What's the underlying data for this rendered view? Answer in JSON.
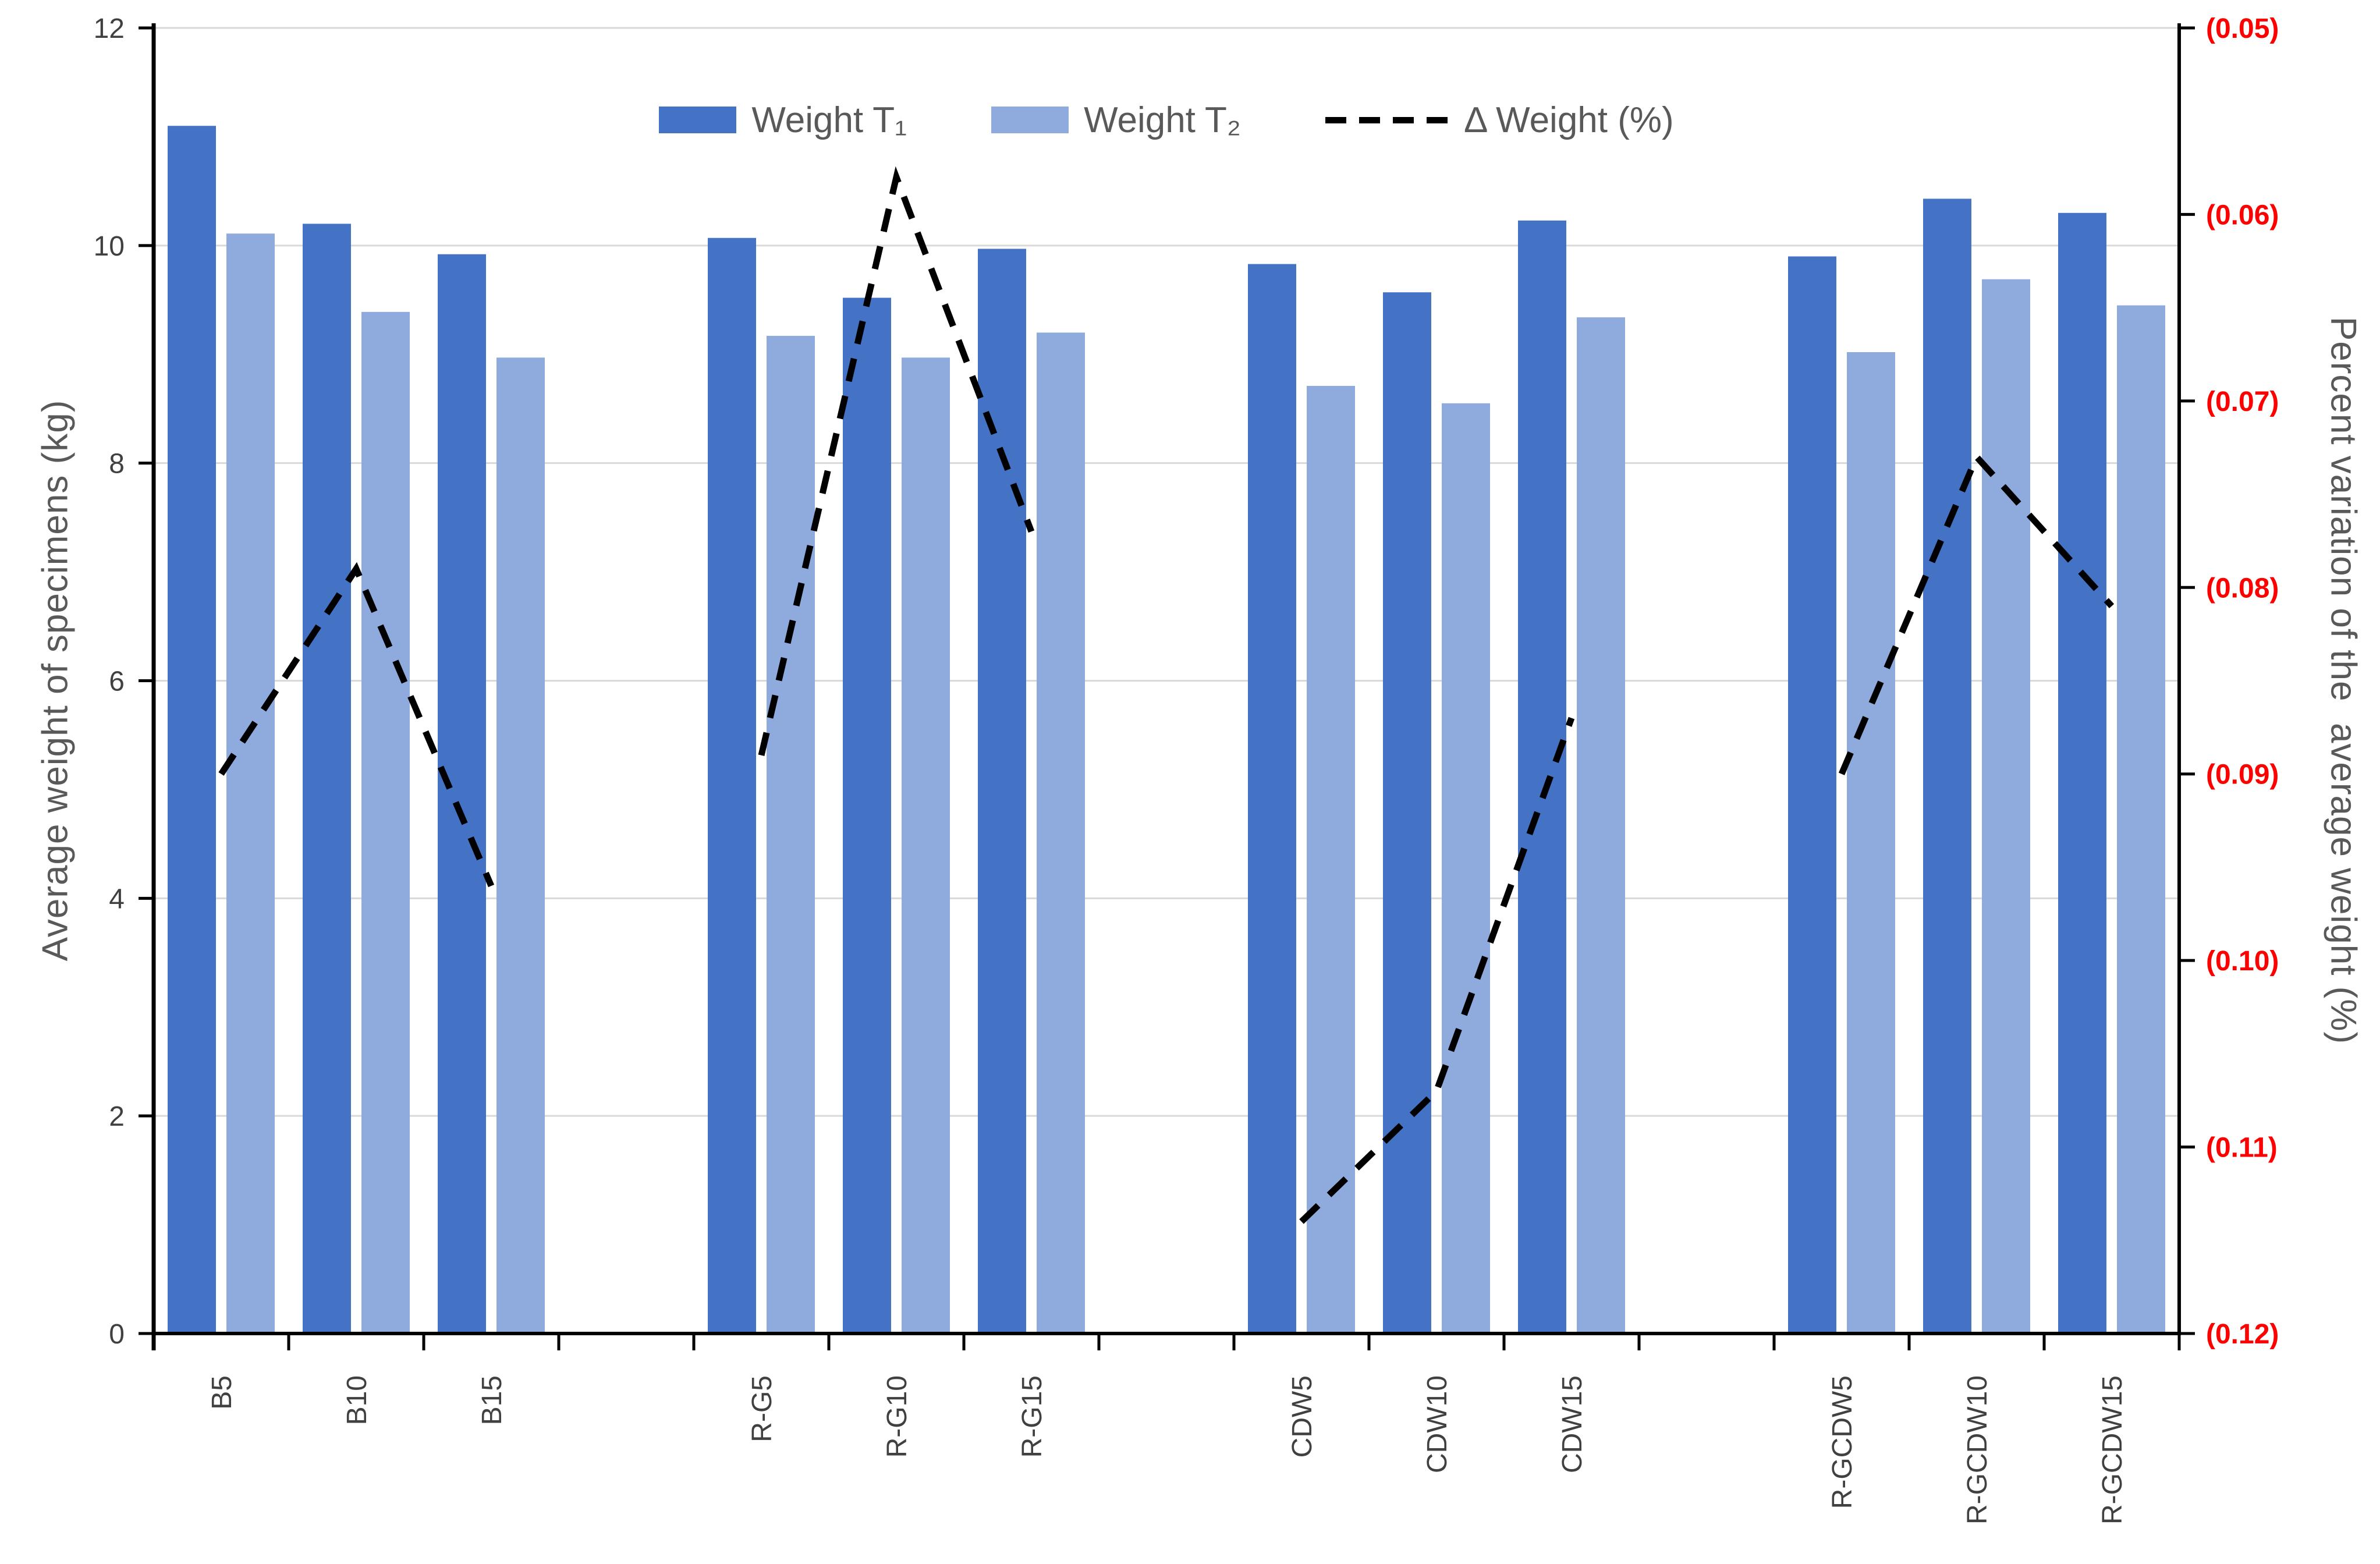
{
  "chart_data": {
    "type": "bar",
    "subtype": "grouped-bars-with-dashed-line-overlay",
    "background_color": "#FFFFFF",
    "gridline_color": "#D9D9D9",
    "grid": true,
    "categories": [
      "B5",
      "B10",
      "B15",
      "R-G5",
      "R-G10",
      "R-G15",
      "CDW5",
      "CDW10",
      "CDW15",
      "R-GCDW5",
      "R-GCDW10",
      "R-GCDW15"
    ],
    "category_groups": [
      [
        "B5",
        "B10",
        "B15"
      ],
      [
        "R-G5",
        "R-G10",
        "R-G15"
      ],
      [
        "CDW5",
        "CDW10",
        "CDW15"
      ],
      [
        "R-GCDW5",
        "R-GCDW10",
        "R-GCDW15"
      ]
    ],
    "group_size": 3,
    "empty_slots_between_groups": 1,
    "series": [
      {
        "name": "Weight T₁",
        "type": "bar",
        "marker": "rect",
        "axis": "left",
        "color": "#4472C4",
        "values": [
          11.1,
          10.2,
          9.92,
          10.07,
          9.52,
          9.97,
          9.83,
          9.57,
          10.23,
          9.9,
          10.43,
          10.3
        ]
      },
      {
        "name": "Weight T₂",
        "type": "bar",
        "marker": "rect",
        "axis": "left",
        "color": "#8FAADC",
        "values": [
          10.11,
          9.39,
          8.97,
          9.17,
          8.97,
          9.2,
          8.71,
          8.55,
          9.34,
          9.02,
          9.69,
          9.45
        ]
      },
      {
        "name": "Δ Weight (%)",
        "type": "dashed-line",
        "marker": "dash",
        "axis": "right",
        "color": "#000000",
        "drawn_per_group": true,
        "values": [
          -0.09,
          -0.079,
          -0.096,
          -0.089,
          -0.058,
          -0.077,
          -0.114,
          -0.107,
          -0.087,
          -0.09,
          -0.073,
          -0.081
        ]
      }
    ],
    "left_axis": {
      "title": "Average weight of specimens (kg)",
      "min": 0,
      "max": 12,
      "tick_step": 2,
      "tick_values": [
        0,
        2,
        4,
        6,
        8,
        10,
        12
      ],
      "tick_labels": [
        "0",
        "2",
        "4",
        "6",
        "8",
        "10",
        "12"
      ],
      "label_color": "#404040",
      "title_color": "#595959"
    },
    "right_axis": {
      "title": "Percent variation of the  average weight (%)",
      "min": -0.12,
      "max": -0.05,
      "tick_step": 0.01,
      "tick_labels_top_to_bottom": [
        "(0.05)",
        "(0.06)",
        "(0.07)",
        "(0.08)",
        "(0.09)",
        "(0.10)",
        "(0.11)",
        "(0.12)"
      ],
      "number_format": "accounting-parentheses-negative",
      "label_color": "#FF0000",
      "title_color": "#595959"
    },
    "x_axis": {
      "label_rotation_deg": -90,
      "label_color": "#404040",
      "axis_color": "#000000"
    },
    "legend": {
      "position": "top-center"
    }
  }
}
